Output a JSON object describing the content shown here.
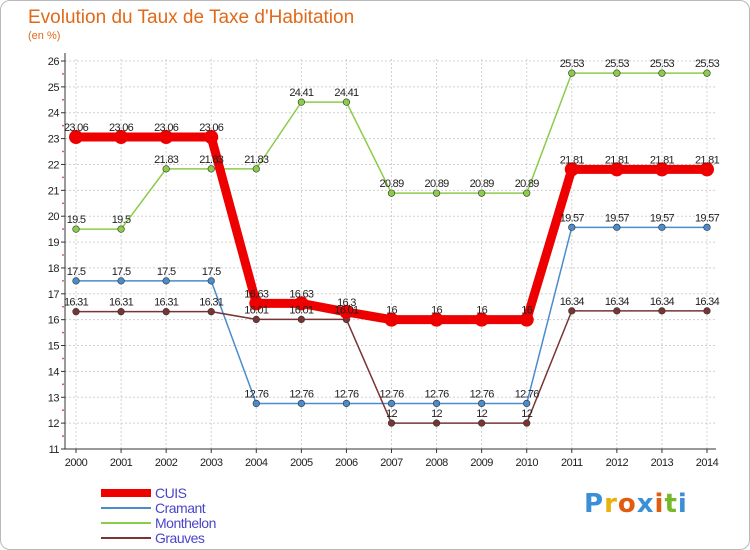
{
  "header": {
    "title": "Evolution du Taux de Taxe d'Habitation",
    "unit": "(en %)"
  },
  "chart_data": {
    "type": "line",
    "x": [
      2000,
      2001,
      2002,
      2003,
      2004,
      2005,
      2006,
      2007,
      2008,
      2009,
      2010,
      2011,
      2012,
      2013,
      2014
    ],
    "ylim": [
      11,
      26
    ],
    "yticks": [
      11,
      12,
      13,
      14,
      15,
      16,
      17,
      18,
      19,
      20,
      21,
      22,
      23,
      24,
      25,
      26
    ],
    "grid": true,
    "legend_position": "bottom-left",
    "series": [
      {
        "name": "CUIS",
        "color": "#ee0000",
        "values": [
          23.06,
          23.06,
          23.06,
          23.06,
          16.63,
          16.63,
          16.3,
          16,
          16,
          16,
          16,
          21.81,
          21.81,
          21.81,
          21.81
        ],
        "labels": [
          "23.06",
          "23.06",
          "23.06",
          "23.06",
          "16.63",
          "16.63",
          "16.3",
          "16",
          "16",
          "16",
          "16",
          "21.81",
          "21.81",
          "21.81",
          "21.81"
        ]
      },
      {
        "name": "Cramant",
        "color": "#4a8ccc",
        "values": [
          17.5,
          17.5,
          17.5,
          17.5,
          12.76,
          12.76,
          12.76,
          12.76,
          12.76,
          12.76,
          12.76,
          19.57,
          19.57,
          19.57,
          19.57
        ],
        "labels": [
          "17.5",
          "17.5",
          "17.5",
          "17.5",
          "12.76",
          "12.76",
          "12.76",
          "12.76",
          "12.76",
          "12.76",
          "12.76",
          "19.57",
          "19.57",
          "19.57",
          "19.57"
        ]
      },
      {
        "name": "Monthelon",
        "color": "#8bcc4a",
        "values": [
          19.5,
          19.5,
          21.83,
          21.83,
          21.83,
          24.41,
          24.41,
          20.89,
          20.89,
          20.89,
          20.89,
          25.53,
          25.53,
          25.53,
          25.53
        ],
        "labels": [
          "19.5",
          "19.5",
          "21.83",
          "21.83",
          "21.83",
          "24.41",
          "24.41",
          "20.89",
          "20.89",
          "20.89",
          "20.89",
          "25.53",
          "25.53",
          "25.53",
          "25.53"
        ]
      },
      {
        "name": "Grauves",
        "color": "#7a3434",
        "values": [
          16.31,
          16.31,
          16.31,
          16.31,
          16.01,
          16.01,
          16.01,
          12,
          12,
          12,
          12,
          16.34,
          16.34,
          16.34,
          16.34
        ],
        "labels": [
          "16.31",
          "16.31",
          "16.31",
          "16.31",
          "16.01",
          "16.01",
          "16.01",
          "12",
          "12",
          "12",
          "12",
          "16.34",
          "16.34",
          "16.34",
          "16.34"
        ]
      }
    ]
  },
  "legend": {
    "items": [
      {
        "label": "CUIS",
        "color": "#ee0000"
      },
      {
        "label": "Cramant",
        "color": "#4a8ccc"
      },
      {
        "label": "Monthelon",
        "color": "#8bcc4a"
      },
      {
        "label": "Grauves",
        "color": "#7a3434"
      }
    ]
  },
  "logo": {
    "letters": [
      "P",
      "r",
      "o",
      "x",
      "i",
      "t",
      "i"
    ],
    "colors": [
      "#3b8fd6",
      "#e9b10e",
      "#e25b0e",
      "#3b8fd6",
      "#e25b0e",
      "#76b82a",
      "#3b8fd6"
    ]
  }
}
